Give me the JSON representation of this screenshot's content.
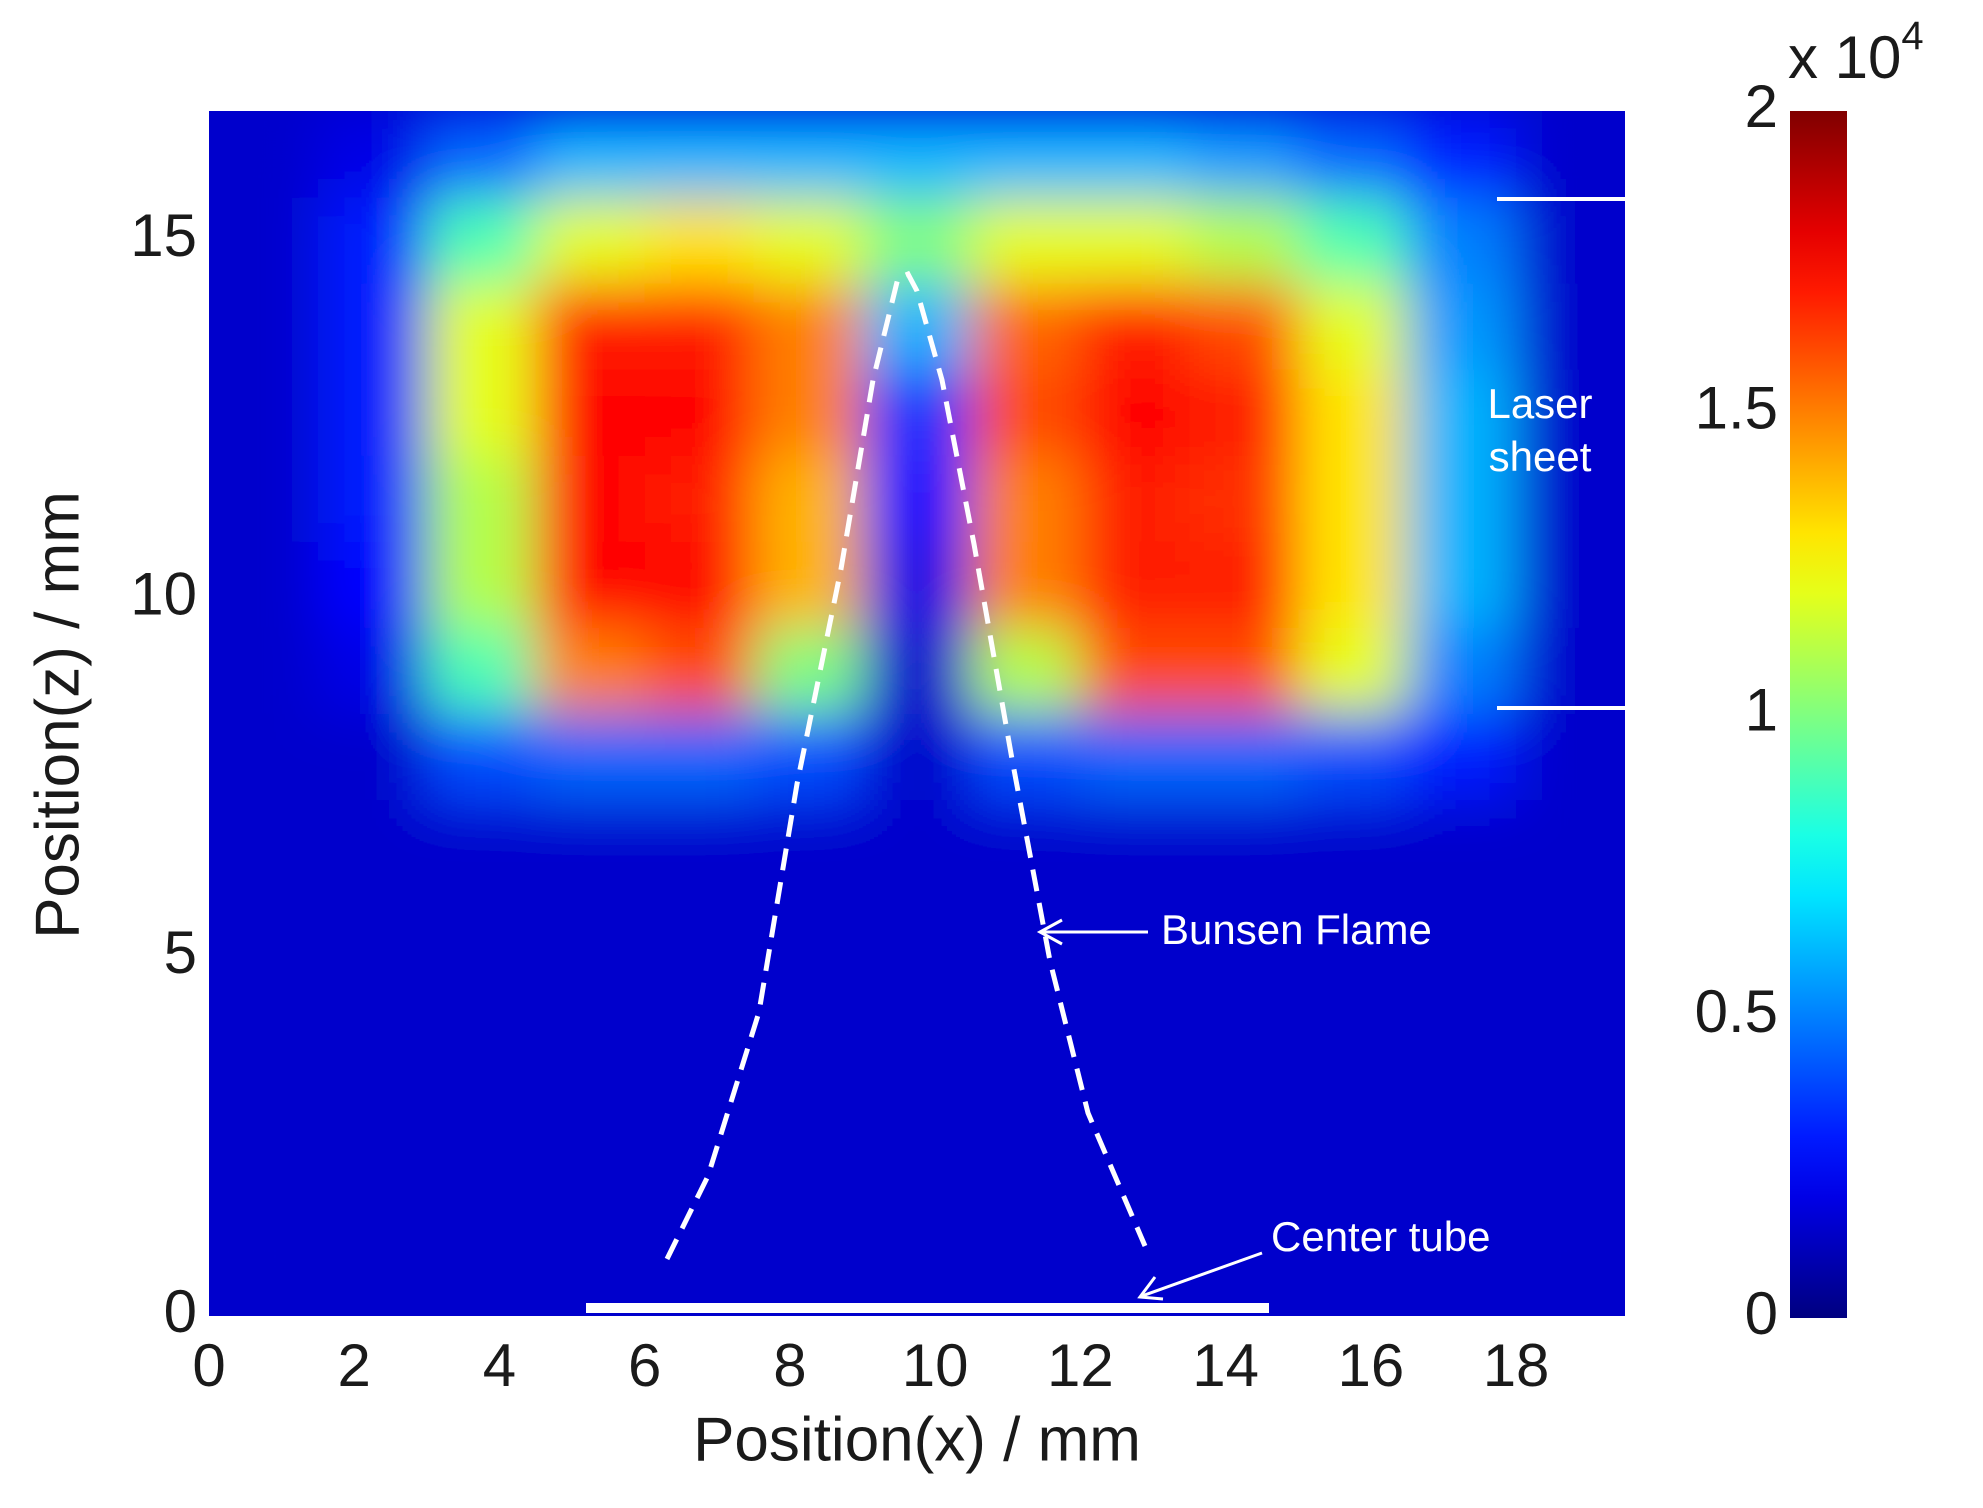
{
  "chart_data": {
    "type": "heatmap",
    "xlabel": "Position(x) / mm",
    "ylabel": "Position(z) / mm",
    "xlim": [
      0,
      19.5
    ],
    "ylim": [
      0,
      16.8
    ],
    "xticks": [
      0,
      2,
      4,
      6,
      8,
      10,
      12,
      14,
      16,
      18
    ],
    "yticks": [
      0,
      5,
      10,
      15
    ],
    "xbins": [
      0,
      1.5,
      3,
      4.5,
      6,
      7.5,
      9,
      10.5,
      12,
      13.5,
      15,
      16.5,
      18,
      19.5
    ],
    "ybins": [
      0,
      1.2,
      2.4,
      3.6,
      4.8,
      6,
      7.2,
      8.4,
      9.6,
      10.8,
      12,
      13.2,
      14.4,
      15.6,
      16.8
    ],
    "z": [
      [
        0.15,
        0.15,
        0.15,
        0.15,
        0.15,
        0.15,
        0.15,
        0.15,
        0.15,
        0.15,
        0.15,
        0.15,
        0.15
      ],
      [
        0.15,
        0.15,
        0.15,
        0.15,
        0.15,
        0.15,
        0.15,
        0.15,
        0.15,
        0.15,
        0.15,
        0.15,
        0.15
      ],
      [
        0.15,
        0.15,
        0.15,
        0.15,
        0.15,
        0.15,
        0.15,
        0.15,
        0.15,
        0.15,
        0.15,
        0.15,
        0.15
      ],
      [
        0.15,
        0.15,
        0.15,
        0.15,
        0.15,
        0.15,
        0.15,
        0.15,
        0.15,
        0.15,
        0.15,
        0.15,
        0.15
      ],
      [
        0.15,
        0.15,
        0.15,
        0.15,
        0.15,
        0.15,
        0.15,
        0.15,
        0.15,
        0.15,
        0.15,
        0.15,
        0.15
      ],
      [
        0.15,
        0.15,
        0.15,
        0.15,
        0.15,
        0.15,
        0.15,
        0.15,
        0.15,
        0.15,
        0.15,
        0.15,
        0.15
      ],
      [
        0.15,
        0.15,
        0.4,
        0.45,
        0.45,
        0.4,
        0.15,
        0.4,
        0.45,
        0.45,
        0.4,
        0.3,
        0.15
      ],
      [
        0.15,
        0.2,
        0.9,
        1.5,
        1.6,
        1.0,
        0.15,
        1.1,
        1.6,
        1.6,
        1.2,
        0.5,
        0.15
      ],
      [
        0.15,
        0.25,
        1.1,
        1.75,
        1.75,
        1.4,
        0.2,
        1.5,
        1.7,
        1.7,
        1.3,
        0.6,
        0.15
      ],
      [
        0.15,
        0.3,
        1.1,
        1.75,
        1.7,
        1.4,
        0.25,
        1.5,
        1.7,
        1.65,
        1.3,
        0.6,
        0.15
      ],
      [
        0.15,
        0.3,
        1.2,
        1.75,
        1.75,
        1.5,
        0.35,
        1.6,
        1.75,
        1.7,
        1.3,
        0.6,
        0.15
      ],
      [
        0.15,
        0.3,
        1.2,
        1.7,
        1.7,
        1.5,
        0.6,
        1.55,
        1.7,
        1.6,
        1.2,
        0.55,
        0.15
      ],
      [
        0.15,
        0.3,
        0.9,
        1.2,
        1.3,
        1.2,
        1.0,
        1.2,
        1.2,
        1.1,
        0.9,
        0.5,
        0.15
      ],
      [
        0.15,
        0.2,
        0.45,
        0.6,
        0.6,
        0.6,
        0.6,
        0.6,
        0.6,
        0.55,
        0.45,
        0.3,
        0.15
      ]
    ],
    "colormap": "jet",
    "clim": [
      0,
      2
    ],
    "cticks": [
      0,
      0.5,
      1,
      1.5,
      2
    ],
    "colorbar_scale": {
      "base": "x 10",
      "exponent": "4"
    },
    "annotations": {
      "laser_sheet": [
        "Laser",
        "sheet"
      ],
      "bunsen_flame": "Bunsen Flame",
      "center_tube": "Center tube"
    }
  }
}
